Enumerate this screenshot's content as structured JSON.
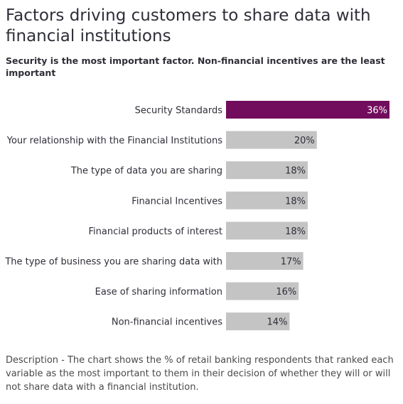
{
  "title": "Factors driving customers to share data with financial institutions",
  "subtitle": "Security is the most important factor. Non-financial incentives are the least important",
  "description": "Description - The chart shows the % of retail banking respondents that ranked each variable as the most important to them in their decision of whether they will or will not share data with a financial institution.",
  "chart_data": {
    "type": "bar",
    "orientation": "horizontal",
    "categories": [
      "Security Standards",
      "Your relationship with the Financial Institutions",
      "The type of data you are sharing",
      "Financial Incentives",
      "Financial products of interest",
      "The type of business you are sharing data with",
      "Ease of sharing information",
      "Non-financial incentives"
    ],
    "values": [
      36,
      20,
      18,
      18,
      18,
      17,
      16,
      14
    ],
    "value_labels": [
      "36%",
      "20%",
      "18%",
      "18%",
      "18%",
      "17%",
      "16%",
      "14%"
    ],
    "unit": "%",
    "xlim": [
      0,
      36
    ],
    "grid": false,
    "legend": "none",
    "colors": {
      "highlight": "#720d5d",
      "default": "#c4c4c4",
      "highlight_text": "#ffffff",
      "default_text": "#2e2e38"
    }
  }
}
